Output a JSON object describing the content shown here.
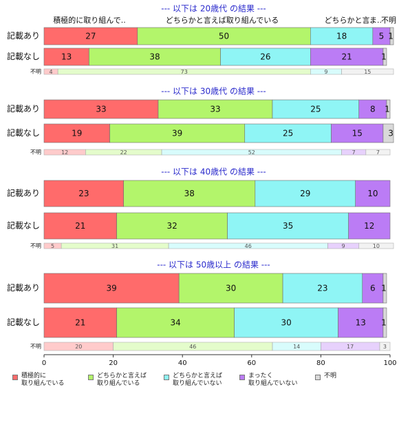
{
  "chart_data": {
    "type": "bar",
    "orientation": "horizontal",
    "stacked": true,
    "xlim": [
      0,
      100
    ],
    "xticks": [
      0,
      20,
      40,
      60,
      80,
      100
    ],
    "categories": [
      "積極的に取り組んでいる",
      "どちらかと言えば取り組んでいる",
      "どちらかと言えば取り組んでいない",
      "まったく取り組んでいない",
      "不明"
    ],
    "colors": [
      "#ff6b6b",
      "#b3f56b",
      "#8ff5f5",
      "#bb7cf5",
      "#d9d9d9"
    ],
    "top_labels": [
      "積極的に取り組んで..",
      "どちらかと言えば取り組んでいる",
      "どちらかと言..",
      "ま..",
      "不明"
    ],
    "groups": [
      {
        "title": "--- 以下は 20歳代 の結果 ---",
        "rows": [
          {
            "label": "記載あり",
            "values": [
              27,
              50,
              18,
              5,
              1
            ]
          },
          {
            "label": "記載なし",
            "values": [
              13,
              38,
              26,
              21,
              1
            ]
          },
          {
            "label": "不明",
            "values": [
              4,
              73,
              9,
              0,
              15
            ]
          }
        ]
      },
      {
        "title": "--- 以下は 30歳代 の結果 ---",
        "rows": [
          {
            "label": "記載あり",
            "values": [
              33,
              33,
              25,
              8,
              1
            ]
          },
          {
            "label": "記載なし",
            "values": [
              19,
              39,
              25,
              15,
              3
            ]
          },
          {
            "label": "不明",
            "values": [
              12,
              22,
              52,
              7,
              7
            ]
          }
        ]
      },
      {
        "title": "--- 以下は 40歳代 の結果 ---",
        "rows": [
          {
            "label": "記載あり",
            "values": [
              23,
              38,
              29,
              10,
              0
            ]
          },
          {
            "label": "記載なし",
            "values": [
              21,
              32,
              35,
              12,
              0
            ]
          },
          {
            "label": "不明",
            "values": [
              5,
              31,
              46,
              9,
              10
            ]
          }
        ]
      },
      {
        "title": "--- 以下は 50歳以上 の結果 ---",
        "rows": [
          {
            "label": "記載あり",
            "values": [
              39,
              30,
              23,
              6,
              1
            ]
          },
          {
            "label": "記載なし",
            "values": [
              21,
              34,
              30,
              13,
              1
            ]
          },
          {
            "label": "不明",
            "values": [
              20,
              46,
              14,
              17,
              3
            ]
          }
        ]
      }
    ],
    "legend": [
      {
        "label": "積極的に\n取り組んでいる",
        "color": "#ff6b6b"
      },
      {
        "label": "どちらかと言えば\n取り組んでいる",
        "color": "#b3f56b"
      },
      {
        "label": "どちらかと言えば\n取り組んでいない",
        "color": "#8ff5f5"
      },
      {
        "label": "まったく\n取り組んでいない",
        "color": "#bb7cf5"
      },
      {
        "label": "不明",
        "color": "#d9d9d9"
      }
    ]
  }
}
